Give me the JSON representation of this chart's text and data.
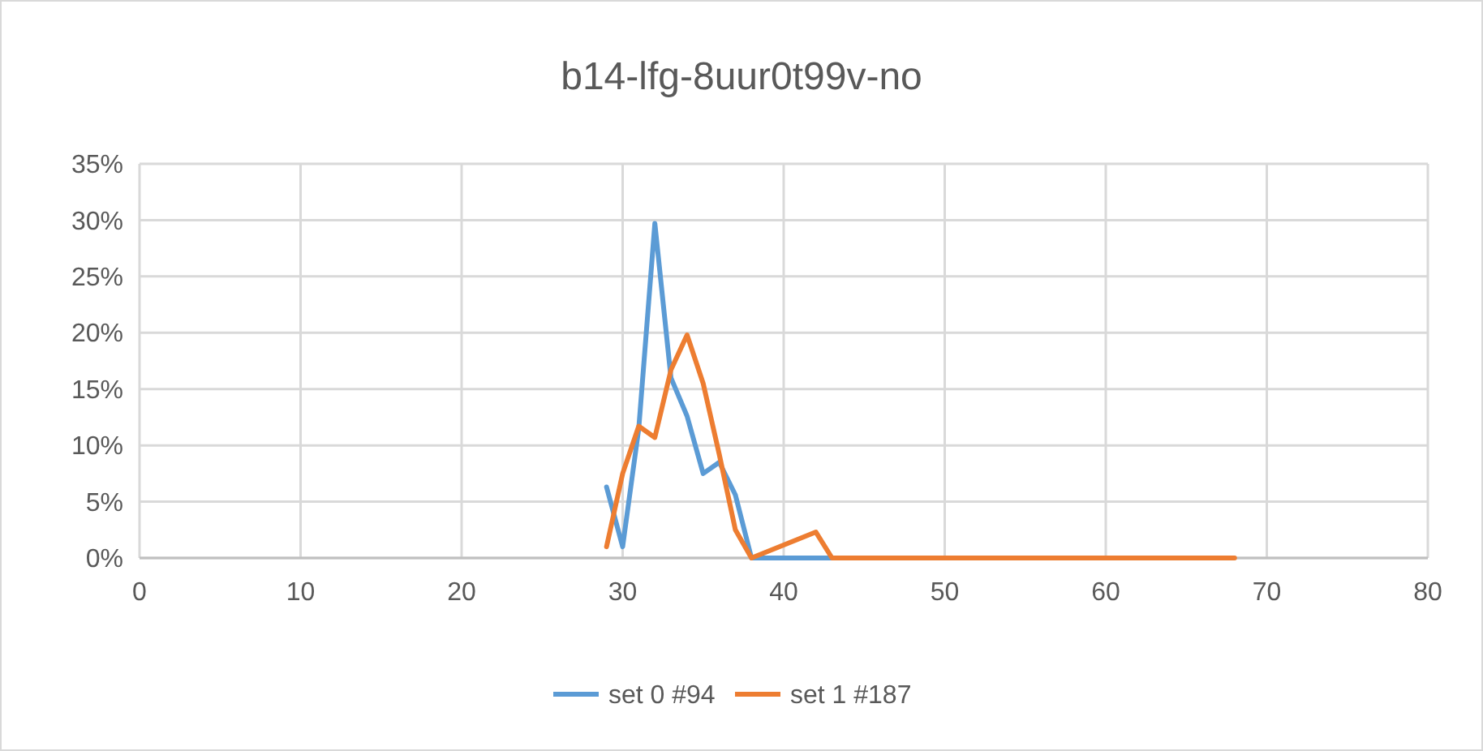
{
  "chart_data": {
    "type": "line",
    "title": "b14-lfg-8uur0t99v-no",
    "xlim": [
      0,
      80
    ],
    "xticks": [
      0,
      10,
      20,
      30,
      40,
      50,
      60,
      70,
      80
    ],
    "ylim": [
      0,
      35
    ],
    "yticks": [
      {
        "value": 0,
        "label": "0%"
      },
      {
        "value": 5,
        "label": "5%"
      },
      {
        "value": 10,
        "label": "10%"
      },
      {
        "value": 15,
        "label": "15%"
      },
      {
        "value": 20,
        "label": "20%"
      },
      {
        "value": 25,
        "label": "25%"
      },
      {
        "value": 30,
        "label": "30%"
      },
      {
        "value": 35,
        "label": "35%"
      }
    ],
    "grid": true,
    "legend": "bottom",
    "marker": "none",
    "line_style": "solid",
    "series": [
      {
        "name": "set 0 #94",
        "color": "#5b9bd5",
        "x": [
          29,
          30,
          31,
          32,
          33,
          34,
          35,
          36,
          37,
          38,
          39,
          40,
          41,
          42,
          43
        ],
        "values": [
          6.3,
          1,
          11.5,
          29.7,
          16,
          12.6,
          7.5,
          8.5,
          5.6,
          0,
          0,
          0,
          0,
          0,
          0
        ]
      },
      {
        "name": "set 1 #187",
        "color": "#ed7d31",
        "x": [
          29,
          30,
          31,
          32,
          33,
          34,
          35,
          36,
          37,
          38,
          42,
          43,
          68
        ],
        "values": [
          1,
          7.5,
          11.7,
          10.7,
          16.7,
          19.8,
          15.5,
          9.2,
          2.5,
          0,
          2.3,
          0,
          0
        ]
      }
    ]
  }
}
